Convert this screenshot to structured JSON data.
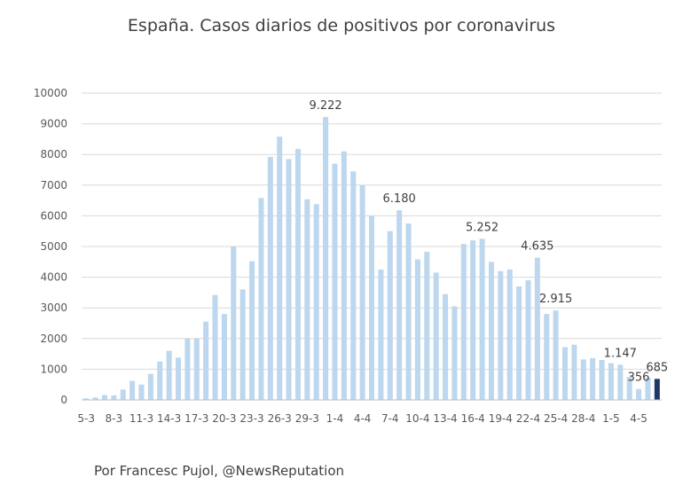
{
  "title": "España. Casos diarios de positivos por coronavirus",
  "credit": "Por Francesc Pujol, @NewsReputation",
  "colors": {
    "bar": "#bdd7ee",
    "highlight": "#1f3864",
    "grid": "#d9d9d9"
  },
  "chart_data": {
    "type": "bar",
    "title": "España. Casos diarios de positivos por coronavirus",
    "ylim": [
      0,
      10000
    ],
    "yticks": [
      0,
      1000,
      2000,
      3000,
      4000,
      5000,
      6000,
      7000,
      8000,
      9000,
      10000
    ],
    "grid": true,
    "x_tick_labels": [
      "5-3",
      "8-3",
      "11-3",
      "14-3",
      "17-3",
      "20-3",
      "23-3",
      "26-3",
      "29-3",
      "1-4",
      "4-4",
      "7-4",
      "10-4",
      "13-4",
      "16-4",
      "19-4",
      "22-4",
      "25-4",
      "28-4",
      "1-5",
      "4-5"
    ],
    "values": [
      50,
      80,
      160,
      150,
      340,
      620,
      500,
      850,
      1250,
      1600,
      1380,
      2000,
      2000,
      2550,
      3420,
      2800,
      5000,
      3600,
      4520,
      6580,
      7920,
      8580,
      7850,
      8180,
      6540,
      6380,
      9222,
      7700,
      8100,
      7450,
      7000,
      6000,
      4250,
      5500,
      6180,
      5750,
      4580,
      4830,
      4150,
      3450,
      3050,
      5080,
      5200,
      5252,
      4500,
      4200,
      4250,
      3700,
      3900,
      4635,
      2800,
      2915,
      1720,
      1800,
      1320,
      1360,
      1300,
      1200,
      1147,
      750,
      356,
      720,
      685
    ],
    "highlight_index": 62,
    "data_labels": [
      {
        "index": 26,
        "text": "9.222"
      },
      {
        "index": 34,
        "text": "6.180"
      },
      {
        "index": 43,
        "text": "5.252"
      },
      {
        "index": 49,
        "text": "4.635"
      },
      {
        "index": 51,
        "text": "2.915"
      },
      {
        "index": 58,
        "text": "1.147"
      },
      {
        "index": 60,
        "text": "356"
      },
      {
        "index": 62,
        "text": "685"
      }
    ]
  }
}
